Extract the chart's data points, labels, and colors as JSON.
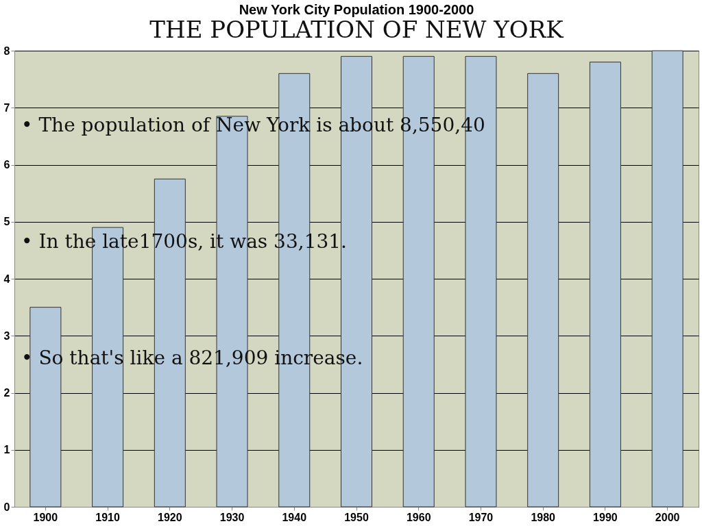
{
  "chart_data": {
    "type": "bar",
    "title": "New York City Population 1900-2000",
    "subtitle": "THE POPULATION OF NEW YORK",
    "categories": [
      "1900",
      "1910",
      "1920",
      "1930",
      "1940",
      "1950",
      "1960",
      "1970",
      "1980",
      "1990",
      "2000"
    ],
    "values": [
      3.5,
      4.9,
      5.75,
      6.85,
      7.6,
      7.9,
      7.9,
      7.9,
      7.6,
      7.8,
      8.0
    ],
    "color": "#b4c8dc",
    "ylim": [
      0,
      8
    ],
    "yticks": [
      0,
      1,
      2,
      3,
      4,
      5,
      6,
      7,
      8
    ],
    "grid": "y",
    "annotations": [
      "•   The population of New York is about 8,550,40",
      "•   In the late1700s, it was 33,131.",
      "•   So that's like a 821,909 increase."
    ]
  }
}
